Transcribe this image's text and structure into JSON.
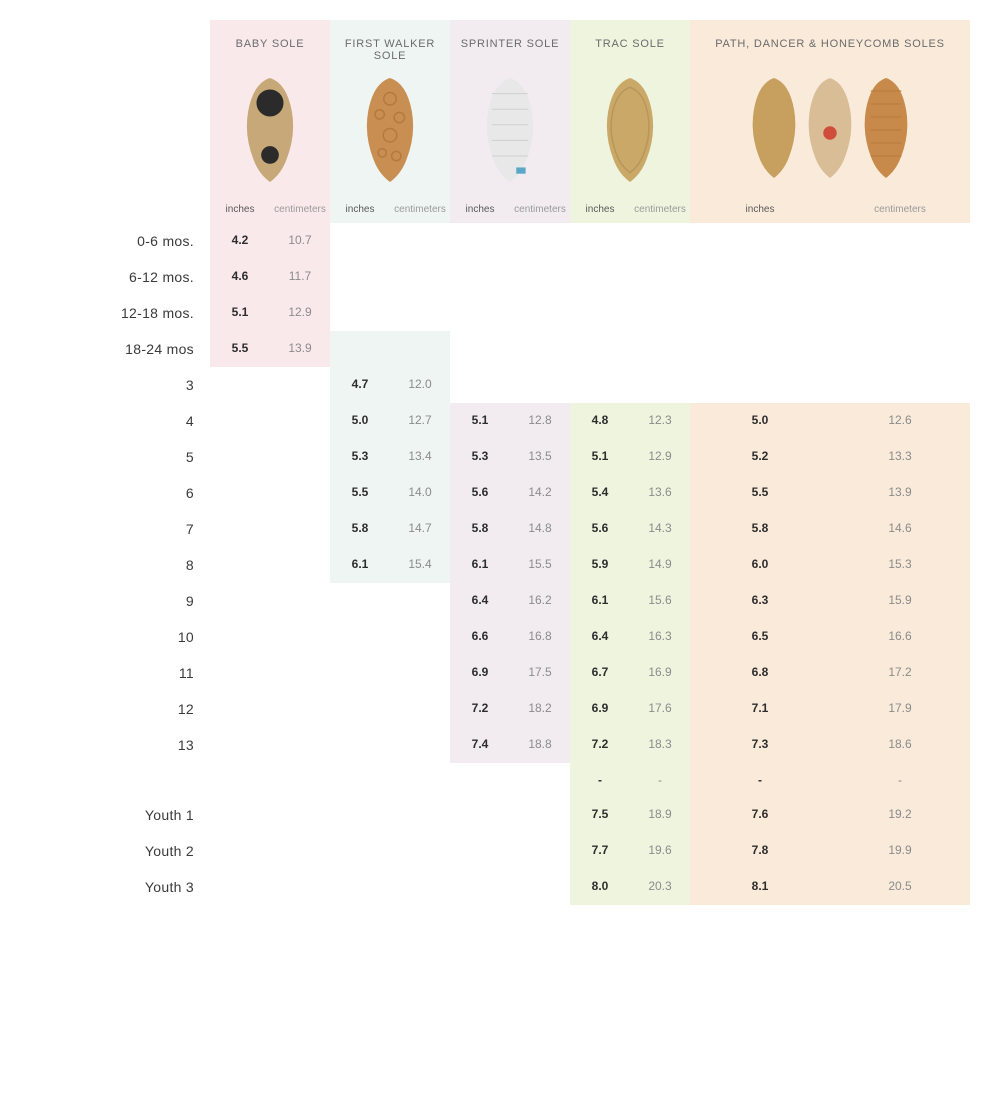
{
  "columns": [
    {
      "key": "baby",
      "label": "BABY SOLE",
      "bg": "#fae9ea",
      "soles": 1
    },
    {
      "key": "walker",
      "label": "FIRST WALKER SOLE",
      "bg": "#eef5f2",
      "soles": 1
    },
    {
      "key": "sprint",
      "label": "SPRINTER SOLE",
      "bg": "#f2ecf1",
      "soles": 1
    },
    {
      "key": "trac",
      "label": "TRAC SOLE",
      "bg": "#eff4df",
      "soles": 1
    },
    {
      "key": "path",
      "label": "PATH, DANCER & HONEYCOMB SOLES",
      "bg": "#f9ead9",
      "soles": 3
    }
  ],
  "units": {
    "in": "inches",
    "cm": "centimeters"
  },
  "sole_svg": {
    "baby": {
      "outer": "#c7a878",
      "dot1": "#2b2b2b",
      "dot2": "#2b2b2b"
    },
    "walker": {
      "outer": "#c98f52",
      "pattern": "#b37a3e"
    },
    "sprint": {
      "outer": "#e8e8e8",
      "pattern": "#cfcfcf",
      "accent": "#5aa7c7"
    },
    "trac": {
      "outer": "#caa968",
      "pattern": "#b8955a"
    },
    "path_a": {
      "outer": "#c79f5e"
    },
    "path_b": {
      "outer": "#d8bd96",
      "dot": "#cf4d3b"
    },
    "path_c": {
      "outer": "#c78a4a",
      "pattern": "#b5793d"
    }
  },
  "rows": [
    {
      "label": "0-6 mos.",
      "baby": [
        "4.2",
        "10.7"
      ]
    },
    {
      "label": "6-12 mos.",
      "baby": [
        "4.6",
        "11.7"
      ]
    },
    {
      "label": "12-18 mos.",
      "baby": [
        "5.1",
        "12.9"
      ]
    },
    {
      "label": "18-24 mos",
      "baby": [
        "5.5",
        "13.9"
      ]
    },
    {
      "label": "3",
      "walker": [
        "4.7",
        "12.0"
      ]
    },
    {
      "label": "4",
      "walker": [
        "5.0",
        "12.7"
      ],
      "sprint": [
        "5.1",
        "12.8"
      ],
      "trac": [
        "4.8",
        "12.3"
      ],
      "path": [
        "5.0",
        "12.6"
      ]
    },
    {
      "label": "5",
      "walker": [
        "5.3",
        "13.4"
      ],
      "sprint": [
        "5.3",
        "13.5"
      ],
      "trac": [
        "5.1",
        "12.9"
      ],
      "path": [
        "5.2",
        "13.3"
      ]
    },
    {
      "label": "6",
      "walker": [
        "5.5",
        "14.0"
      ],
      "sprint": [
        "5.6",
        "14.2"
      ],
      "trac": [
        "5.4",
        "13.6"
      ],
      "path": [
        "5.5",
        "13.9"
      ]
    },
    {
      "label": "7",
      "walker": [
        "5.8",
        "14.7"
      ],
      "sprint": [
        "5.8",
        "14.8"
      ],
      "trac": [
        "5.6",
        "14.3"
      ],
      "path": [
        "5.8",
        "14.6"
      ]
    },
    {
      "label": "8",
      "walker": [
        "6.1",
        "15.4"
      ],
      "sprint": [
        "6.1",
        "15.5"
      ],
      "trac": [
        "5.9",
        "14.9"
      ],
      "path": [
        "6.0",
        "15.3"
      ]
    },
    {
      "label": "9",
      "sprint": [
        "6.4",
        "16.2"
      ],
      "trac": [
        "6.1",
        "15.6"
      ],
      "path": [
        "6.3",
        "15.9"
      ]
    },
    {
      "label": "10",
      "sprint": [
        "6.6",
        "16.8"
      ],
      "trac": [
        "6.4",
        "16.3"
      ],
      "path": [
        "6.5",
        "16.6"
      ]
    },
    {
      "label": "11",
      "sprint": [
        "6.9",
        "17.5"
      ],
      "trac": [
        "6.7",
        "16.9"
      ],
      "path": [
        "6.8",
        "17.2"
      ]
    },
    {
      "label": "12",
      "sprint": [
        "7.2",
        "18.2"
      ],
      "trac": [
        "6.9",
        "17.6"
      ],
      "path": [
        "7.1",
        "17.9"
      ]
    },
    {
      "label": "13",
      "sprint": [
        "7.4",
        "18.8"
      ],
      "trac": [
        "7.2",
        "18.3"
      ],
      "path": [
        "7.3",
        "18.6"
      ]
    },
    {
      "label": "",
      "trac": [
        "-",
        "-"
      ],
      "path": [
        "-",
        "-"
      ]
    },
    {
      "label": "Youth 1",
      "trac": [
        "7.5",
        "18.9"
      ],
      "path": [
        "7.6",
        "19.2"
      ]
    },
    {
      "label": "Youth 2",
      "trac": [
        "7.7",
        "19.6"
      ],
      "path": [
        "7.8",
        "19.9"
      ]
    },
    {
      "label": "Youth 3",
      "trac": [
        "8.0",
        "20.3"
      ],
      "path": [
        "8.1",
        "20.5"
      ]
    }
  ],
  "column_ranges": {
    "baby": [
      0,
      3
    ],
    "walker": [
      3,
      9
    ],
    "sprint": [
      5,
      14
    ],
    "trac": [
      5,
      18
    ],
    "path": [
      5,
      18
    ]
  }
}
